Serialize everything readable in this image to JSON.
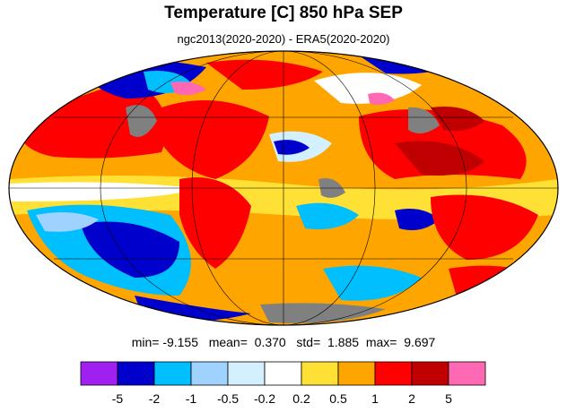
{
  "header": {
    "title": "Temperature [C] 850 hPa SEP",
    "subtitle": "ngc2013(2020-2020) - ERA5(2020-2020)"
  },
  "stats": {
    "min_label": "min=",
    "min_value": "-9.155",
    "mean_label": "mean=",
    "mean_value": "0.370",
    "std_label": "std=",
    "std_value": "1.885",
    "max_label": "max=",
    "max_value": "9.697"
  },
  "colorbar": {
    "colors": [
      "#a020f0",
      "#0000cd",
      "#00bfff",
      "#a0d2ff",
      "#d2f0ff",
      "#ffffff",
      "#ffe135",
      "#ffa500",
      "#ff0000",
      "#c00000",
      "#ff69b4"
    ],
    "labels": [
      "-5",
      "-2",
      "-1",
      "-0.5",
      "-0.2",
      "0.2",
      "0.5",
      "1",
      "2",
      "5"
    ]
  },
  "map": {
    "projection": "mollweide",
    "missing_color": "#808080"
  }
}
